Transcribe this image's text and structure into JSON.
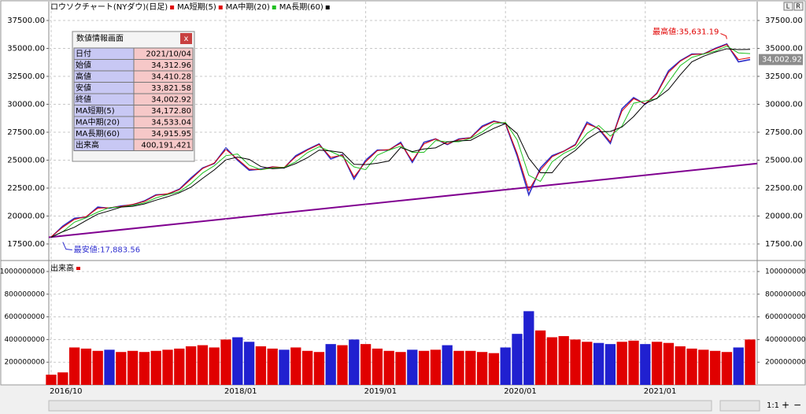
{
  "window": {
    "buttons": [
      "L",
      "R"
    ],
    "zoom_label": "1:1",
    "plus": "+",
    "minus": "−"
  },
  "chart_data": [
    {
      "type": "line",
      "series": [
        {
          "name": "ロウソクチャート(NYダウ)(日足)",
          "color": "#e00000",
          "line_color": "#3030c8",
          "values": [
            18100,
            19100,
            19800,
            19900,
            20800,
            20700,
            20900,
            21000,
            21350,
            21900,
            21950,
            22400,
            23400,
            24300,
            24700,
            26100,
            25000,
            24100,
            24200,
            24400,
            24300,
            25400,
            25950,
            26450,
            25100,
            25500,
            23300,
            25000,
            25900,
            25900,
            26600,
            24800,
            26600,
            26900,
            26400,
            26900,
            27000,
            28050,
            28500,
            28250,
            25400,
            21900,
            24300,
            25400,
            25800,
            26400,
            28400,
            27800,
            26500,
            29600,
            30600,
            30000,
            31000,
            33000,
            33900,
            34500,
            34500,
            35000,
            35400,
            33800,
            34003
          ]
        },
        {
          "name": "MA短期(5)",
          "color": "#e00000",
          "values": [
            18150,
            19000,
            19700,
            19950,
            20700,
            20750,
            20850,
            21050,
            21300,
            21850,
            22000,
            22350,
            23300,
            24250,
            24750,
            25950,
            25100,
            24200,
            24150,
            24400,
            24350,
            25300,
            25900,
            26400,
            25250,
            25450,
            23500,
            24850,
            25850,
            25950,
            26500,
            24950,
            26450,
            26900,
            26450,
            26850,
            27000,
            27950,
            28450,
            28300,
            25600,
            22300,
            24100,
            25300,
            25800,
            26350,
            28250,
            27850,
            26650,
            29400,
            30500,
            30050,
            30950,
            32850,
            33850,
            34450,
            34500,
            34950,
            35350,
            34000,
            34173
          ]
        },
        {
          "name": "MA中期(20)",
          "color": "#20c020",
          "values": [
            18100,
            18600,
            19450,
            19850,
            20350,
            20750,
            20800,
            20950,
            21175,
            21625,
            21925,
            22175,
            22900,
            23850,
            24500,
            25400,
            25550,
            24550,
            24150,
            24300,
            24350,
            24850,
            25675,
            26200,
            25775,
            25300,
            24400,
            24150,
            25450,
            25900,
            26250,
            25700,
            25700,
            26750,
            26650,
            26650,
            26950,
            27525,
            28275,
            28375,
            26825,
            23650,
            23100,
            24850,
            25600,
            26100,
            27400,
            28100,
            27150,
            28050,
            30100,
            30300,
            30500,
            32000,
            33450,
            34200,
            34500,
            34750,
            35200,
            34600,
            34533
          ]
        },
        {
          "name": "MA長期(60)",
          "color": "#000000",
          "values": [
            18100,
            18600,
            19000,
            19600,
            20170,
            20470,
            20800,
            20870,
            21080,
            21420,
            21730,
            22080,
            22580,
            23370,
            24130,
            25030,
            25270,
            25070,
            24430,
            24230,
            24300,
            24700,
            25220,
            25900,
            25830,
            25680,
            24630,
            24600,
            24730,
            24930,
            26130,
            25770,
            26000,
            26100,
            26630,
            26730,
            26770,
            27320,
            27850,
            28270,
            27380,
            25180,
            23870,
            23870,
            25170,
            25870,
            26870,
            27530,
            27570,
            27970,
            28900,
            30070,
            30530,
            31330,
            32630,
            33800,
            34300,
            34670,
            34970,
            34900,
            34916
          ]
        }
      ],
      "trend_line": {
        "color": "#800090",
        "values": [
          18100,
          24700
        ]
      },
      "ylim": [
        16230,
        38770
      ],
      "yticks": [
        {
          "value": 17500,
          "label": "17500.00"
        },
        {
          "value": 20000,
          "label": "20000.00"
        },
        {
          "value": 22500,
          "label": "22500.00"
        },
        {
          "value": 25000,
          "label": "25000.00"
        },
        {
          "value": 27500,
          "label": "27500.00"
        },
        {
          "value": 30000,
          "label": "30000.00"
        },
        {
          "value": 32500,
          "label": "32500.00"
        },
        {
          "value": 35000,
          "label": "35000.00"
        },
        {
          "value": 37500,
          "label": "37500.00"
        }
      ],
      "grid": true,
      "high": {
        "text": "最高値:35,631.19",
        "value": 35631.19,
        "index": 58
      },
      "low": {
        "text": "最安値:17,883.56",
        "value": 17883.56,
        "index": 1
      },
      "last": {
        "value": 34002.92,
        "label": "34,002.92"
      }
    },
    {
      "type": "bar",
      "title": "出来高",
      "color": "#e00000",
      "up_color": "#e00000",
      "down_color": "#2020d0",
      "categories": [
        "2016/10",
        null,
        null,
        null,
        null,
        null,
        null,
        null,
        null,
        null,
        null,
        null,
        null,
        null,
        null,
        "2018/01",
        null,
        null,
        null,
        null,
        null,
        null,
        null,
        null,
        null,
        null,
        null,
        "2019/01",
        null,
        null,
        null,
        null,
        null,
        null,
        null,
        null,
        null,
        null,
        null,
        "2020/01",
        null,
        null,
        null,
        null,
        null,
        null,
        null,
        null,
        null,
        null,
        null,
        "2021/01",
        null,
        null,
        null,
        null,
        null,
        null,
        null,
        null,
        null
      ],
      "values": [
        90000000,
        110000000,
        330000000,
        320000000,
        300000000,
        310000000,
        290000000,
        300000000,
        290000000,
        300000000,
        310000000,
        320000000,
        340000000,
        350000000,
        330000000,
        400000000,
        420000000,
        380000000,
        340000000,
        320000000,
        310000000,
        330000000,
        300000000,
        290000000,
        360000000,
        350000000,
        400000000,
        360000000,
        320000000,
        300000000,
        290000000,
        310000000,
        300000000,
        310000000,
        350000000,
        300000000,
        300000000,
        290000000,
        280000000,
        330000000,
        450000000,
        650000000,
        480000000,
        420000000,
        430000000,
        400000000,
        380000000,
        370000000,
        360000000,
        380000000,
        390000000,
        360000000,
        380000000,
        370000000,
        340000000,
        320000000,
        310000000,
        300000000,
        290000000,
        330000000,
        400191421
      ],
      "ylim": [
        0,
        1083000000
      ],
      "yticks": [
        200000000,
        400000000,
        600000000,
        800000000,
        1000000000
      ],
      "grid": true
    }
  ],
  "info_panel": {
    "title": "数値情報画面",
    "close": "x",
    "rows": [
      [
        "日付",
        "2021/10/04"
      ],
      [
        "始値",
        "34,312.96"
      ],
      [
        "高値",
        "34,410.28"
      ],
      [
        "安値",
        "33,821.58"
      ],
      [
        "終値",
        "34,002.92"
      ],
      [
        "MA短期(5)",
        "34,172.80"
      ],
      [
        "MA中期(20)",
        "34,533.04"
      ],
      [
        "MA長期(60)",
        "34,915.95"
      ],
      [
        "出来高",
        "400,191,421"
      ]
    ]
  }
}
